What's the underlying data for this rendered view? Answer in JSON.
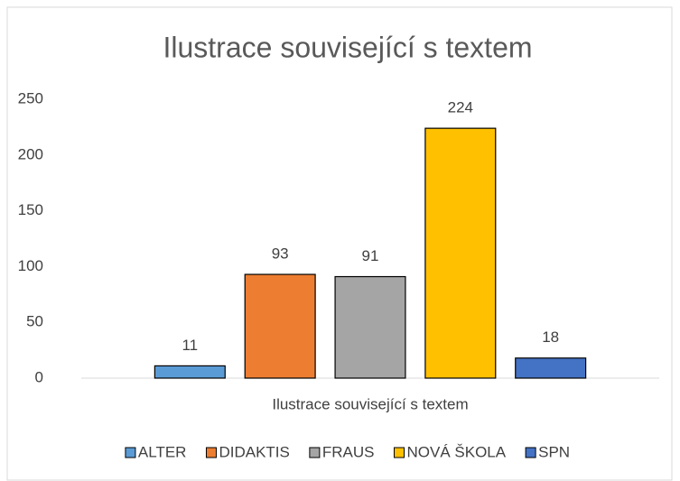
{
  "chart_data": {
    "type": "bar",
    "title": "Ilustrace související s textem",
    "categories": [
      "Ilustrace související s textem"
    ],
    "series": [
      {
        "name": "ALTER",
        "color": "#5b9bd5",
        "values": [
          11
        ]
      },
      {
        "name": "DIDAKTIS",
        "color": "#ed7d31",
        "values": [
          93
        ]
      },
      {
        "name": "FRAUS",
        "color": "#a5a5a5",
        "values": [
          91
        ]
      },
      {
        "name": "NOVÁ ŠKOLA",
        "color": "#ffc000",
        "values": [
          224
        ]
      },
      {
        "name": "SPN",
        "color": "#4472c4",
        "values": [
          18
        ]
      }
    ],
    "ylim": [
      0,
      250
    ],
    "yticks": [
      0,
      50,
      100,
      150,
      200,
      250
    ],
    "grid": false,
    "legend": "bottom"
  }
}
